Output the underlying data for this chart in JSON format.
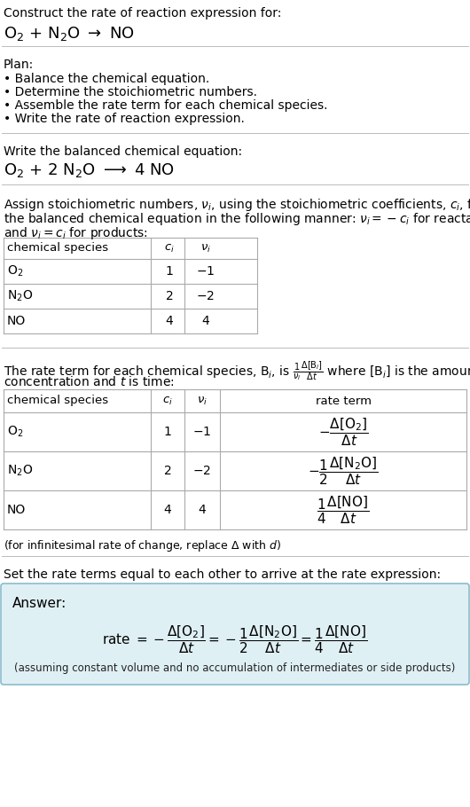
{
  "title_line1": "Construct the rate of reaction expression for:",
  "title_line2": "O$_2$ + N$_2$O $\\rightarrow$ NO",
  "plan_header": "Plan:",
  "plan_items": [
    "\\textbullet  Balance the chemical equation.",
    "\\textbullet  Determine the stoichiometric numbers.",
    "\\textbullet  Assemble the rate term for each chemical species.",
    "\\textbullet  Write the rate of reaction expression."
  ],
  "plan_items_plain": [
    "• Balance the chemical equation.",
    "• Determine the stoichiometric numbers.",
    "• Assemble the rate term for each chemical species.",
    "• Write the rate of reaction expression."
  ],
  "balanced_header": "Write the balanced chemical equation:",
  "balanced_eq": "O$_2$ + 2 N$_2$O $\\longrightarrow$ 4 NO",
  "assign_text1": "Assign stoichiometric numbers, $\\nu_i$, using the stoichiometric coefficients, $c_i$, from",
  "assign_text2": "the balanced chemical equation in the following manner: $\\nu_i = -c_i$ for reactants",
  "assign_text3": "and $\\nu_i = c_i$ for products:",
  "table1_headers": [
    "chemical species",
    "$c_i$",
    "$\\nu_i$"
  ],
  "table1_rows": [
    [
      "O$_2$",
      "1",
      "$-1$"
    ],
    [
      "N$_2$O",
      "2",
      "$-2$"
    ],
    [
      "NO",
      "4",
      "4"
    ]
  ],
  "rate_text1": "The rate term for each chemical species, B$_i$, is $\\frac{1}{\\nu_i}\\frac{\\Delta[\\mathrm{B}_i]}{\\Delta t}$ where [B$_i$] is the amount",
  "rate_text2": "concentration and $t$ is time:",
  "table2_headers": [
    "chemical species",
    "$c_i$",
    "$\\nu_i$",
    "rate term"
  ],
  "table2_rows": [
    [
      "O$_2$",
      "1",
      "$-1$",
      "$-\\dfrac{\\Delta[\\mathrm{O}_2]}{\\Delta t}$"
    ],
    [
      "N$_2$O",
      "2",
      "$-2$",
      "$-\\dfrac{1}{2}\\dfrac{\\Delta[\\mathrm{N_2O}]}{\\Delta t}$"
    ],
    [
      "NO",
      "4",
      "4",
      "$\\dfrac{1}{4}\\dfrac{\\Delta[\\mathrm{NO}]}{\\Delta t}$"
    ]
  ],
  "infinitesimal_note": "(for infinitesimal rate of change, replace $\\Delta$ with $d$)",
  "set_equal_text": "Set the rate terms equal to each other to arrive at the rate expression:",
  "answer_label": "Answer:",
  "answer_eq": "rate $= -\\dfrac{\\Delta[\\mathrm{O}_2]}{\\Delta t} = -\\dfrac{1}{2}\\dfrac{\\Delta[\\mathrm{N_2O}]}{\\Delta t} = \\dfrac{1}{4}\\dfrac{\\Delta[\\mathrm{NO}]}{\\Delta t}$",
  "assuming_note": "(assuming constant volume and no accumulation of intermediates or side products)",
  "bg_color": "#ffffff",
  "answer_box_color": "#dff0f5",
  "answer_box_border": "#8bbccc",
  "text_color": "#000000",
  "table_line_color": "#aaaaaa",
  "sep_line_color": "#bbbbbb"
}
